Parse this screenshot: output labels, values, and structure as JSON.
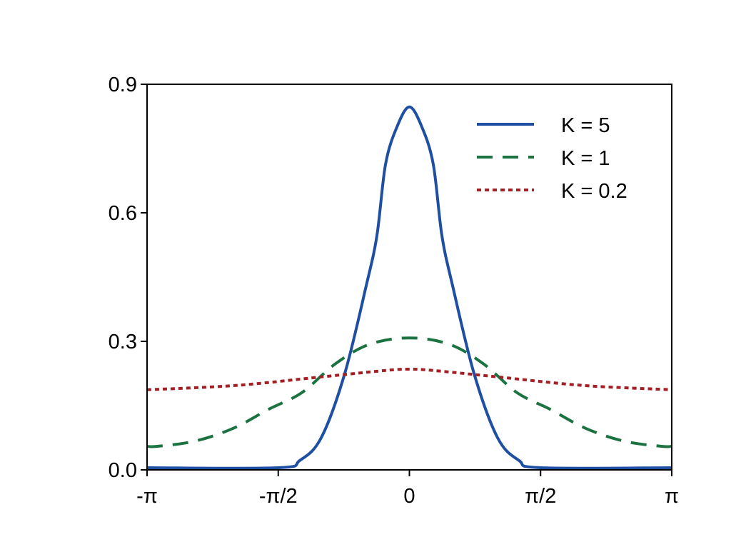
{
  "chart_data": {
    "type": "line",
    "title": "",
    "xlabel": "",
    "ylabel": "",
    "xlim": [
      -3.14159,
      3.14159
    ],
    "ylim": [
      0,
      0.9
    ],
    "grid": false,
    "legend": "top-right",
    "x_ticks": [
      {
        "value": -3.14159,
        "label": "-π"
      },
      {
        "value": -1.5708,
        "label": "-π/2"
      },
      {
        "value": 0,
        "label": "0"
      },
      {
        "value": 1.5708,
        "label": "π/2"
      },
      {
        "value": 3.14159,
        "label": "π"
      }
    ],
    "y_ticks": [
      {
        "value": 0,
        "label": "0.0"
      },
      {
        "value": 0.3,
        "label": "0.3"
      },
      {
        "value": 0.6,
        "label": "0.6"
      },
      {
        "value": 0.9,
        "label": "0.9"
      }
    ],
    "series": [
      {
        "name": "K = 5",
        "color": "#1f4fa3",
        "style": "solid",
        "x": [
          -3.1416,
          -1.571,
          -1.312,
          -1.056,
          -0.774,
          -0.517,
          -0.389,
          -0.286,
          -0.15,
          0,
          0.15,
          0.286,
          0.389,
          0.517,
          0.774,
          1.056,
          1.312,
          1.571,
          3.1416
        ],
        "y": [
          0.005,
          0.005,
          0.022,
          0.075,
          0.225,
          0.43,
          0.547,
          0.713,
          0.8,
          0.847,
          0.8,
          0.713,
          0.547,
          0.43,
          0.225,
          0.075,
          0.022,
          0.005,
          0.005
        ]
      },
      {
        "name": "K = 1",
        "color": "#1a7340",
        "style": "dashed",
        "x": [
          -3.1416,
          -3.02,
          -2.57,
          -2.11,
          -1.68,
          -1.29,
          -0.89,
          -0.48,
          0,
          0.48,
          0.89,
          1.29,
          1.68,
          2.11,
          2.57,
          3.02,
          3.1416
        ],
        "y": [
          0.055,
          0.055,
          0.067,
          0.097,
          0.142,
          0.18,
          0.247,
          0.293,
          0.308,
          0.293,
          0.247,
          0.18,
          0.142,
          0.097,
          0.067,
          0.055,
          0.055
        ]
      },
      {
        "name": "K = 0.2",
        "color": "#a31f24",
        "style": "dotted",
        "x": [
          -3.1416,
          -2.082,
          -1.056,
          -0.287,
          0,
          0.287,
          1.056,
          2.082,
          3.1416
        ],
        "y": [
          0.187,
          0.197,
          0.217,
          0.232,
          0.235,
          0.232,
          0.217,
          0.197,
          0.187
        ]
      }
    ]
  }
}
